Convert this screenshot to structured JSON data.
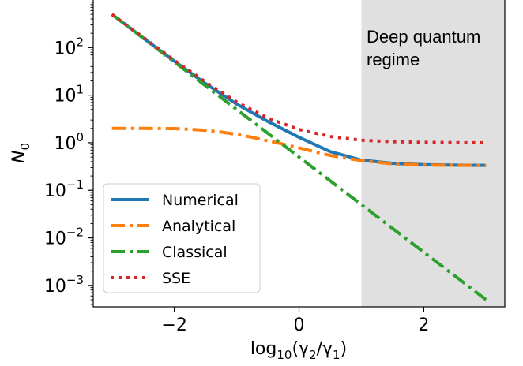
{
  "chart_data": {
    "type": "line",
    "xlabel_base": "log",
    "xlabel_sub": "10",
    "xlabel_args": "(γ",
    "xlabel_sub1": "2",
    "xlabel_slash": "/γ",
    "xlabel_sub2": "1",
    "xlabel_close": ")",
    "ylabel_main": "N",
    "ylabel_sub": "0",
    "xlim": [
      -3.3,
      3.3
    ],
    "ylim_log10": [
      -3.45,
      3.0
    ],
    "yscale": "log",
    "x_ticks": [
      {
        "value": -2,
        "label": "−2"
      },
      {
        "value": 0,
        "label": "0"
      },
      {
        "value": 2,
        "label": "2"
      }
    ],
    "y_ticks": [
      {
        "exp": 2,
        "base": "10",
        "sup": "2"
      },
      {
        "exp": 1,
        "base": "10",
        "sup": "1"
      },
      {
        "exp": 0,
        "base": "10",
        "sup": "0"
      },
      {
        "exp": -1,
        "base": "10",
        "sup": "−1"
      },
      {
        "exp": -2,
        "base": "10",
        "sup": "−2"
      },
      {
        "exp": -3,
        "base": "10",
        "sup": "−3"
      }
    ],
    "shaded_region": {
      "x_from": 1,
      "x_to": 3.3,
      "color": "#e0e0e0",
      "label_line1": "Deep quantum",
      "label_line2": "regime"
    },
    "legend": {
      "position": "lower-left"
    },
    "series": [
      {
        "name": "Numerical",
        "color": "#1f77b4",
        "style": "solid",
        "x": [
          -3,
          -2.5,
          -2,
          -1.5,
          -1,
          -0.5,
          0,
          0.5,
          1,
          1.5,
          2,
          2.5,
          3
        ],
        "y": [
          500,
          160,
          52,
          17.5,
          6.5,
          2.8,
          1.3,
          0.65,
          0.43,
          0.37,
          0.345,
          0.338,
          0.335
        ]
      },
      {
        "name": "Analytical",
        "color": "#ff7f0e",
        "style": "dashdot",
        "x": [
          -3,
          -2.5,
          -2,
          -1.75,
          -1.5,
          -1.25,
          -1,
          -0.75,
          -0.5,
          -0.25,
          0,
          0.5,
          1,
          1.5,
          2,
          2.5,
          3
        ],
        "y": [
          2.0,
          2.0,
          1.98,
          1.92,
          1.82,
          1.68,
          1.5,
          1.3,
          1.1,
          0.93,
          0.78,
          0.54,
          0.42,
          0.36,
          0.34,
          0.335,
          0.333
        ]
      },
      {
        "name": "Classical",
        "color": "#2ca02c",
        "style": "dashdot",
        "x": [
          -3,
          3
        ],
        "y": [
          500,
          0.0005
        ]
      },
      {
        "name": "SSE",
        "color": "#d62728",
        "style": "dotted",
        "x": [
          -3,
          -2.5,
          -2,
          -1.5,
          -1,
          -0.5,
          0,
          0.5,
          1,
          1.5,
          2,
          2.5,
          3
        ],
        "y": [
          500,
          165,
          54,
          19,
          7.2,
          3.3,
          1.9,
          1.35,
          1.13,
          1.05,
          1.02,
          1.005,
          1.0
        ]
      }
    ]
  }
}
